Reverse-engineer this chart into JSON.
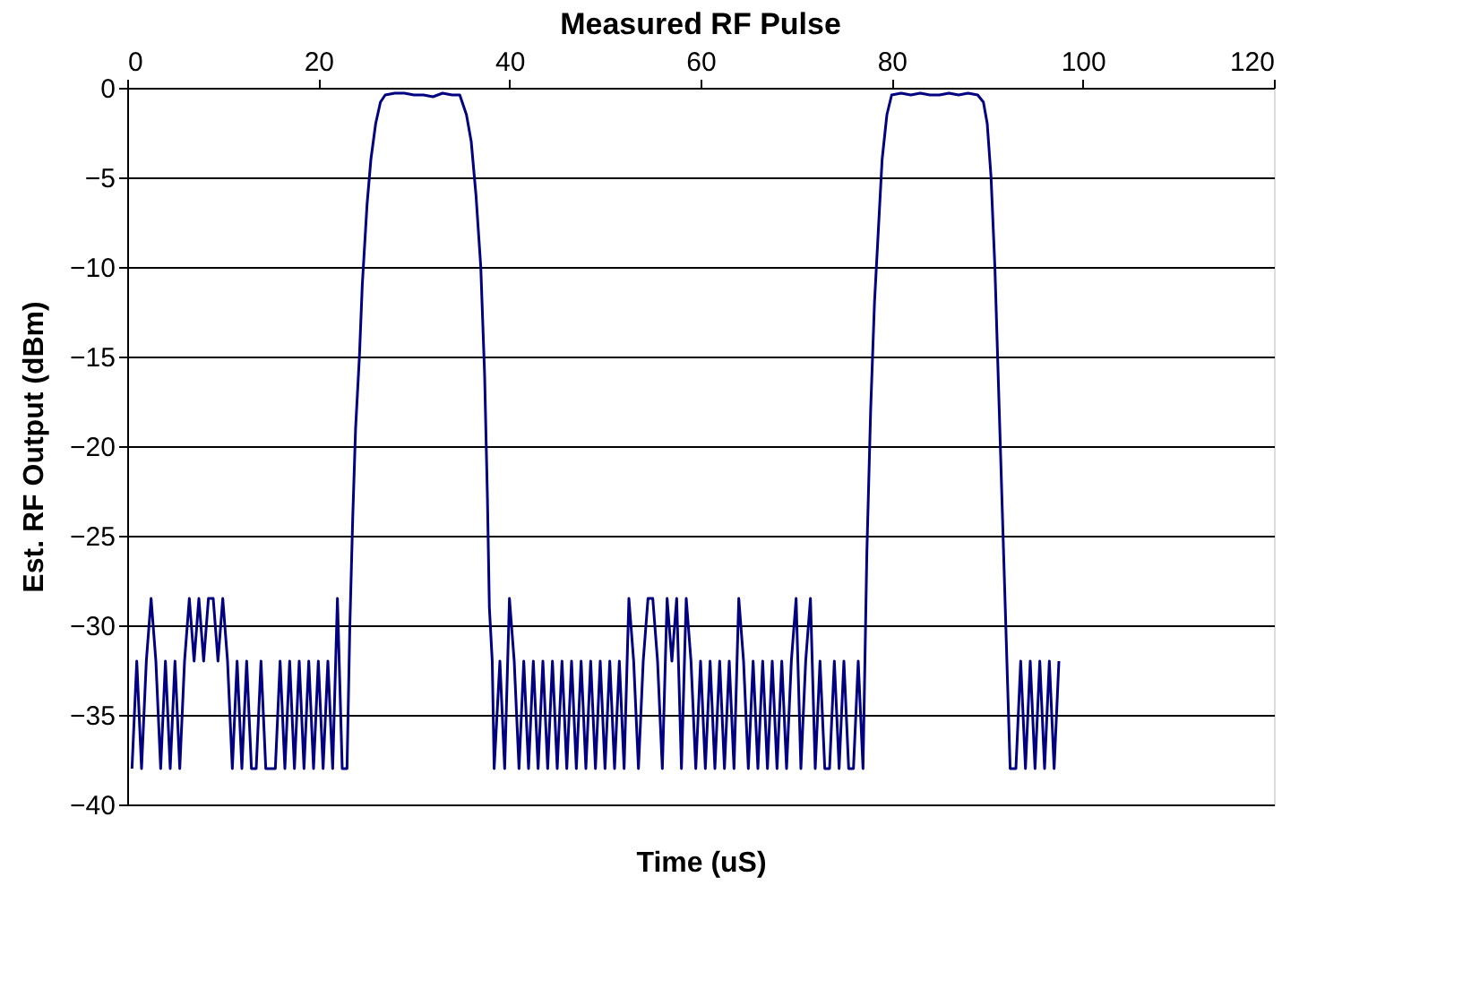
{
  "chart_data": {
    "type": "line",
    "title": "Measured RF Pulse",
    "xlabel": "Time (uS)",
    "ylabel": "Est. RF Output (dBm)",
    "x": [
      0.5,
      1,
      1.5,
      2,
      2.5,
      3,
      3.5,
      4,
      4.5,
      5,
      5.5,
      6,
      6.5,
      7,
      7.5,
      8,
      8.5,
      9,
      9.5,
      10,
      10.5,
      11,
      11.5,
      12,
      12.5,
      13,
      13.5,
      14,
      14.5,
      15,
      15.5,
      16,
      16.5,
      17,
      17.5,
      18,
      18.5,
      19,
      19.5,
      20,
      20.5,
      21,
      21.5,
      22,
      22.5,
      23,
      23.3,
      23.6,
      23.9,
      24.3,
      24.6,
      25.1,
      25.5,
      26,
      26.5,
      27,
      28,
      29,
      30,
      31,
      32,
      33,
      34,
      34.8,
      35.5,
      36,
      36.5,
      37,
      37.4,
      37.7,
      37.9,
      38.2,
      38.4,
      39,
      39.5,
      40,
      40.5,
      41,
      41.5,
      42,
      42.5,
      43,
      43.5,
      44,
      44.5,
      45,
      45.5,
      46,
      46.5,
      47,
      47.5,
      48,
      48.5,
      49,
      49.5,
      50,
      50.5,
      51,
      51.5,
      52,
      52.5,
      53,
      53.5,
      54,
      54.5,
      55,
      55.5,
      56,
      56.5,
      57,
      57.5,
      58,
      58.5,
      59,
      59.5,
      60,
      60.5,
      61,
      61.5,
      62,
      62.5,
      63,
      63.5,
      64,
      64.5,
      65,
      65.5,
      66,
      66.5,
      67,
      67.5,
      68,
      68.5,
      69,
      69.5,
      70,
      70.5,
      71,
      71.5,
      72,
      72.5,
      73,
      73.5,
      74,
      74.5,
      75,
      75.5,
      76,
      76.5,
      77,
      77.4,
      77.8,
      78.2,
      78.6,
      79,
      79.5,
      80,
      81,
      82,
      83,
      84,
      85,
      86,
      87,
      88,
      89,
      89.6,
      90,
      90.4,
      90.8,
      91.2,
      91.6,
      92,
      92.4,
      93,
      93.5,
      94,
      94.5,
      95,
      95.5,
      96,
      96.5,
      97,
      97.5
    ],
    "series": [
      {
        "color": "#000080",
        "values": [
          -38,
          -32,
          -38,
          -32,
          -28.5,
          -32,
          -38,
          -32,
          -38,
          -32,
          -38,
          -32,
          -28.5,
          -32,
          -28.5,
          -32,
          -28.5,
          -28.5,
          -32,
          -28.5,
          -32,
          -38,
          -32,
          -38,
          -32,
          -38,
          -38,
          -32,
          -38,
          -38,
          -38,
          -32,
          -38,
          -32,
          -38,
          -32,
          -38,
          -32,
          -38,
          -32,
          -38,
          -32,
          -38,
          -28.5,
          -38,
          -38,
          -30,
          -24,
          -19,
          -15,
          -11,
          -6.5,
          -4,
          -2,
          -0.8,
          -0.4,
          -0.3,
          -0.3,
          -0.4,
          -0.4,
          -0.5,
          -0.3,
          -0.4,
          -0.4,
          -1.5,
          -3,
          -6,
          -10,
          -16,
          -23,
          -29,
          -32,
          -38,
          -32,
          -38,
          -28.5,
          -32,
          -38,
          -32,
          -38,
          -32,
          -38,
          -32,
          -38,
          -32,
          -38,
          -32,
          -38,
          -32,
          -38,
          -32,
          -38,
          -32,
          -38,
          -32,
          -38,
          -32,
          -38,
          -32,
          -38,
          -28.5,
          -32,
          -38,
          -32,
          -28.5,
          -28.5,
          -32,
          -38,
          -28.5,
          -32,
          -28.5,
          -38,
          -28.5,
          -32,
          -38,
          -32,
          -38,
          -32,
          -38,
          -32,
          -38,
          -32,
          -38,
          -28.5,
          -32,
          -38,
          -32,
          -38,
          -32,
          -38,
          -32,
          -38,
          -32,
          -38,
          -32,
          -28.5,
          -38,
          -32,
          -28.5,
          -38,
          -32,
          -38,
          -38,
          -32,
          -38,
          -32,
          -38,
          -38,
          -32,
          -38,
          -26,
          -18,
          -12,
          -8,
          -4,
          -1.5,
          -0.4,
          -0.3,
          -0.4,
          -0.3,
          -0.4,
          -0.4,
          -0.3,
          -0.4,
          -0.3,
          -0.4,
          -0.8,
          -2,
          -5,
          -10,
          -17,
          -24,
          -31,
          -38,
          -38,
          -32,
          -38,
          -32,
          -38,
          -32,
          -38,
          -32,
          -38,
          -32
        ]
      }
    ],
    "xlim": [
      0,
      120
    ],
    "xticks": [
      0,
      20,
      40,
      60,
      80,
      100,
      120
    ],
    "ylim": [
      -40,
      0
    ],
    "yticks": [
      -40,
      -35,
      -30,
      -25,
      -20,
      -15,
      -10,
      -5,
      0
    ],
    "grid": "y",
    "legend": false,
    "marker": "none",
    "line_style": "solid"
  }
}
